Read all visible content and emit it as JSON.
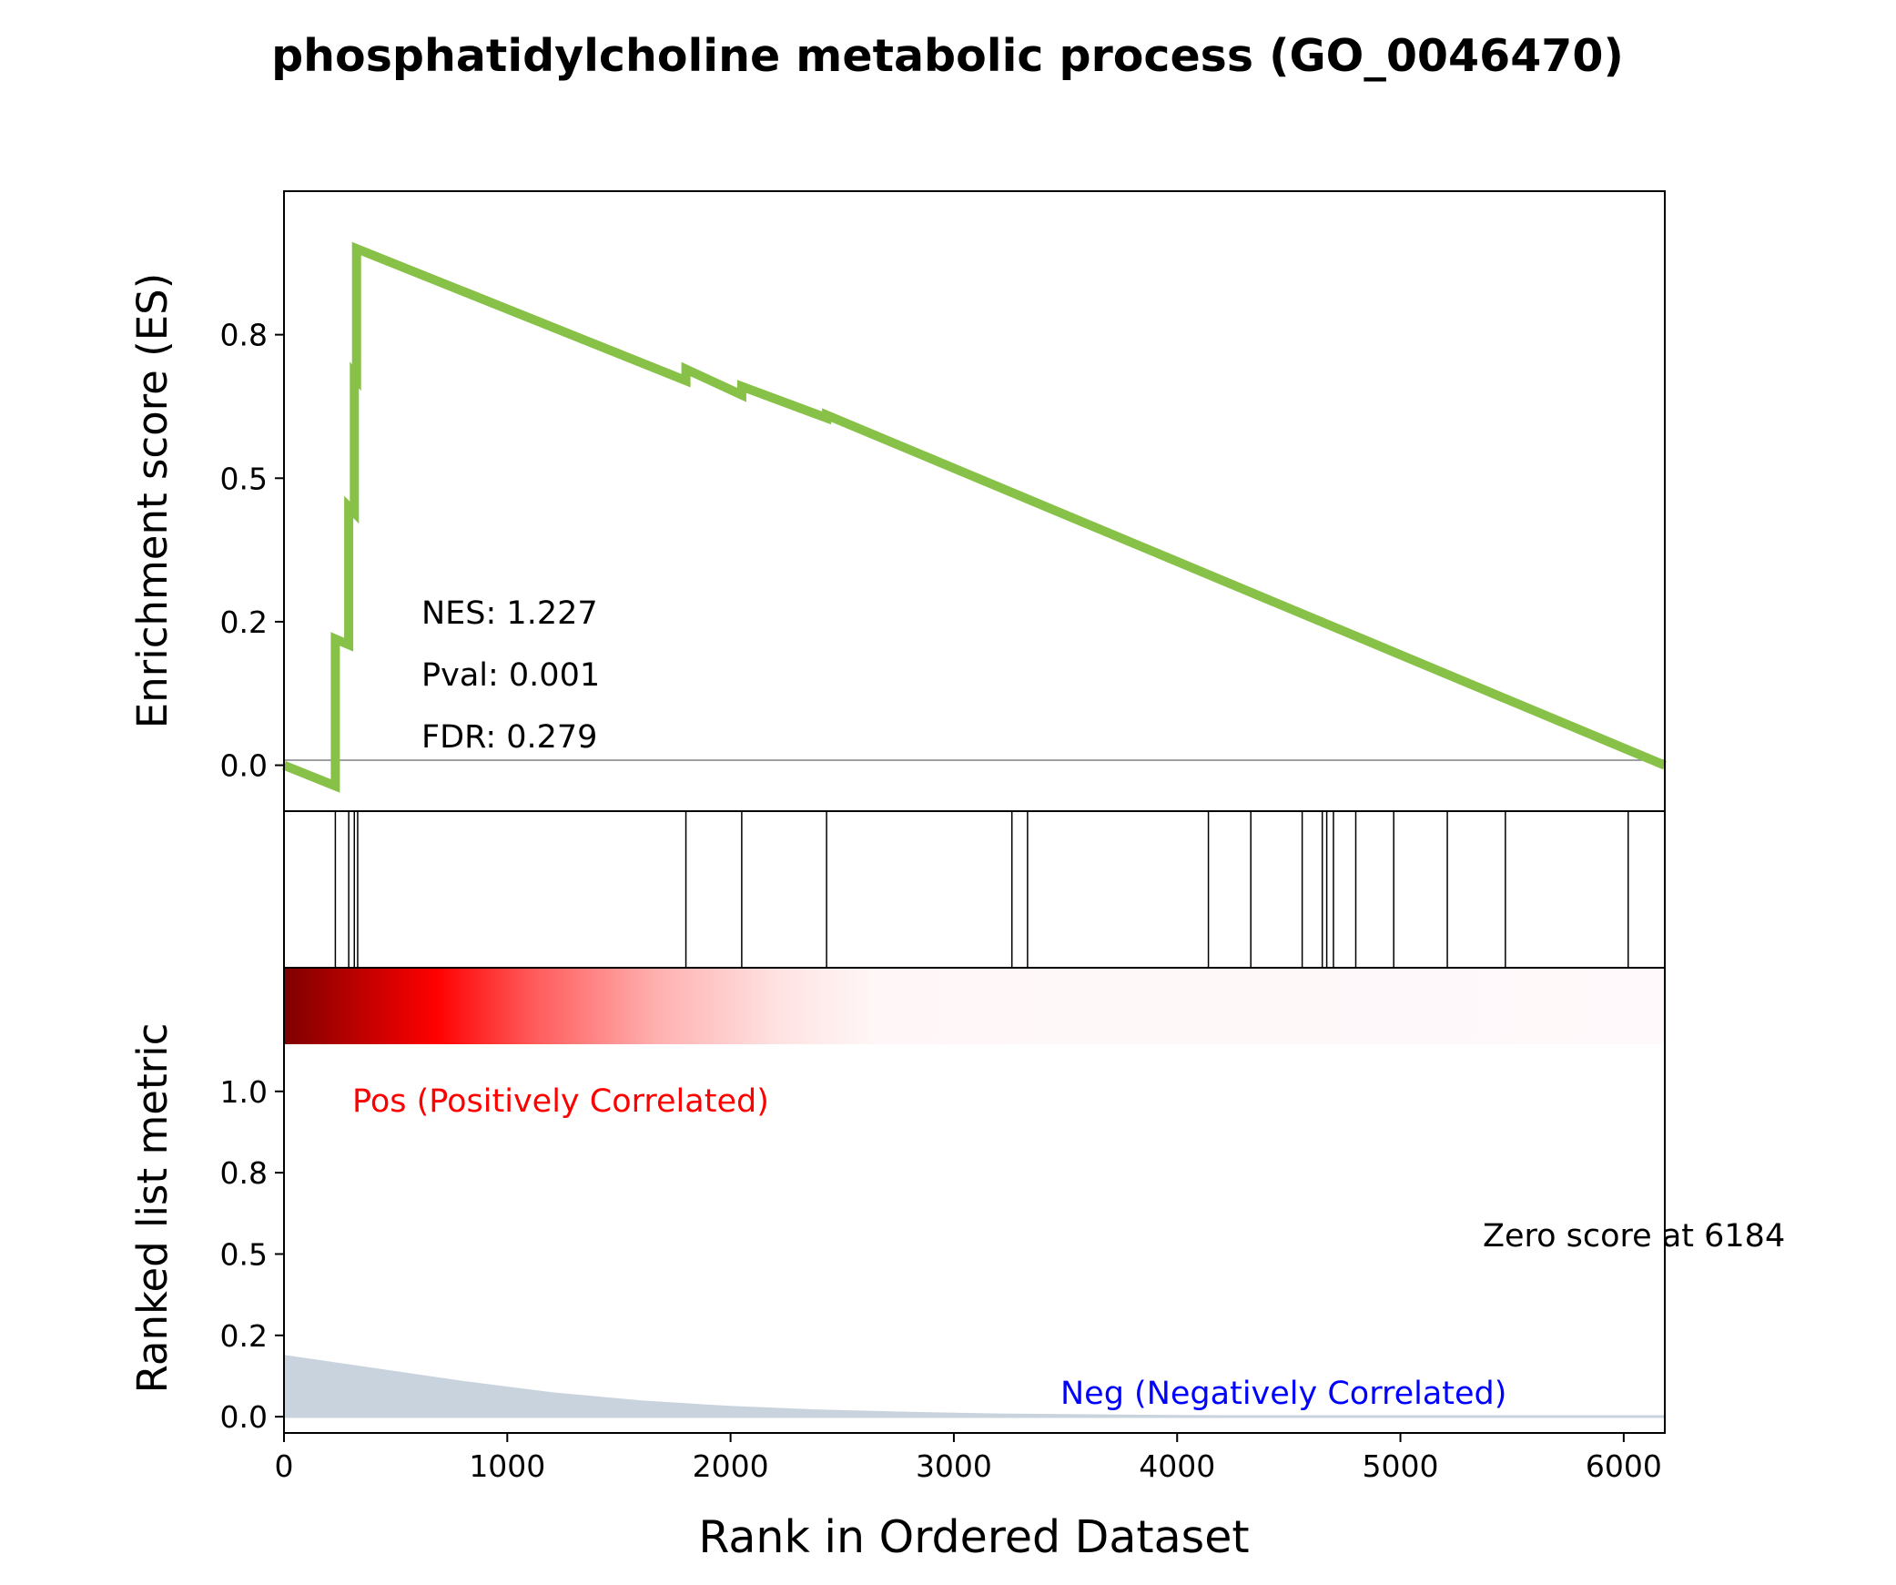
{
  "chart_data": {
    "type": "line",
    "title": "phosphatidylcholine metabolic process (GO_0046470)",
    "xlabel": "Rank in Ordered Dataset",
    "xlim": [
      0,
      6184
    ],
    "x_ticks": [
      0,
      1000,
      2000,
      3000,
      4000,
      5000,
      6000
    ],
    "es_panel": {
      "ylabel": "Enrichment score (ES)",
      "ylim": [
        -0.08,
        1.0
      ],
      "y_ticks": [
        0.0,
        0.25,
        0.5,
        0.75
      ],
      "y_tick_labels": [
        "0.0",
        "0.2",
        "0.5",
        "0.8"
      ],
      "line_color": "#88c148",
      "zero_line": true,
      "series": [
        {
          "x": [
            0,
            230,
            230,
            290,
            290,
            315,
            315,
            325,
            325,
            1800,
            1800,
            2050,
            2050,
            2430,
            2430,
            6184
          ],
          "y": [
            0.0,
            -0.036,
            0.22,
            0.21,
            0.45,
            0.44,
            0.68,
            0.675,
            0.9,
            0.67,
            0.69,
            0.645,
            0.66,
            0.605,
            0.61,
            0.0
          ]
        }
      ],
      "annotations": [
        "NES: 1.227",
        "Pval: 0.001",
        "FDR: 0.279"
      ]
    },
    "hits_panel": {
      "hit_ranks": [
        230,
        290,
        315,
        330,
        1800,
        2050,
        2430,
        3260,
        3330,
        4140,
        4330,
        4560,
        4650,
        4670,
        4700,
        4800,
        4970,
        5210,
        5470,
        6020
      ]
    },
    "rank_panel": {
      "ylabel": "Ranked list metric",
      "ylim": [
        -0.05,
        1.38
      ],
      "y_ticks": [
        0.0,
        0.25,
        0.5,
        0.75,
        1.0
      ],
      "y_tick_labels": [
        "0.0",
        "0.2",
        "0.5",
        "0.8",
        "1.0"
      ],
      "fill_color": "#c9d3dd",
      "series": [
        {
          "x": [
            0,
            400,
            800,
            1200,
            1600,
            2000,
            2400,
            2800,
            3200,
            4000,
            5000,
            6184
          ],
          "y": [
            0.19,
            0.15,
            0.11,
            0.075,
            0.05,
            0.033,
            0.022,
            0.015,
            0.01,
            0.005,
            0.002,
            0.0
          ]
        }
      ],
      "pos_label": "Pos (Positively Correlated)",
      "neg_label": "Neg (Negatively Correlated)",
      "zero_label": "Zero score at 6184",
      "pos_color": "#ff0000",
      "neg_color": "#0000ff"
    }
  }
}
